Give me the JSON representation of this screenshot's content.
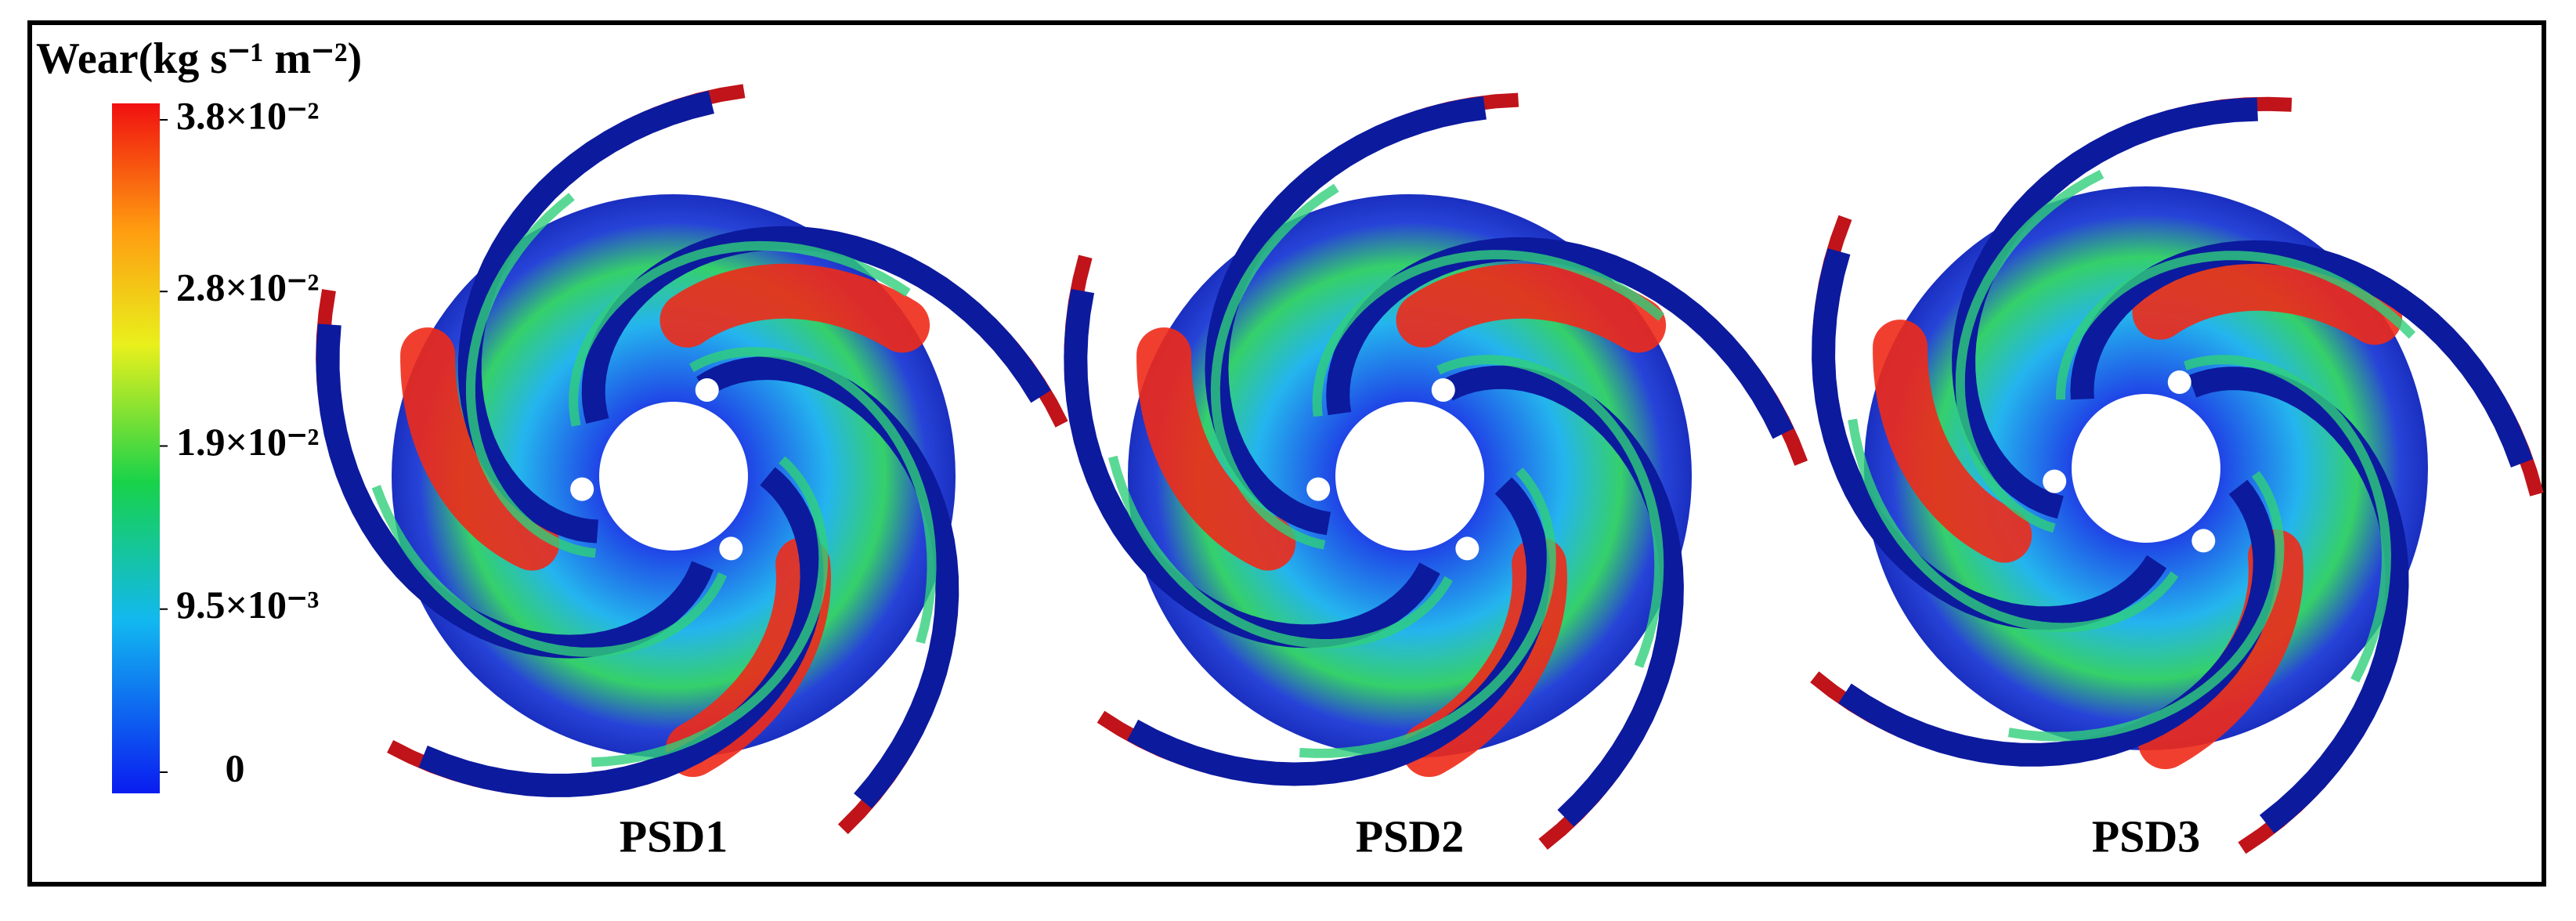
{
  "colorbar": {
    "title": "Wear(kg s⁻¹ m⁻²)",
    "ticks": [
      {
        "value": 0.038,
        "label": "3.8×10⁻²"
      },
      {
        "value": 0.028,
        "label": "2.8×10⁻²"
      },
      {
        "value": 0.019,
        "label": "1.9×10⁻²"
      },
      {
        "value": 0.0095,
        "label": "9.5×10⁻³"
      },
      0
    ]
  },
  "panels": [
    {
      "label": "PSD1"
    },
    {
      "label": "PSD2"
    },
    {
      "label": "PSD3"
    }
  ]
}
